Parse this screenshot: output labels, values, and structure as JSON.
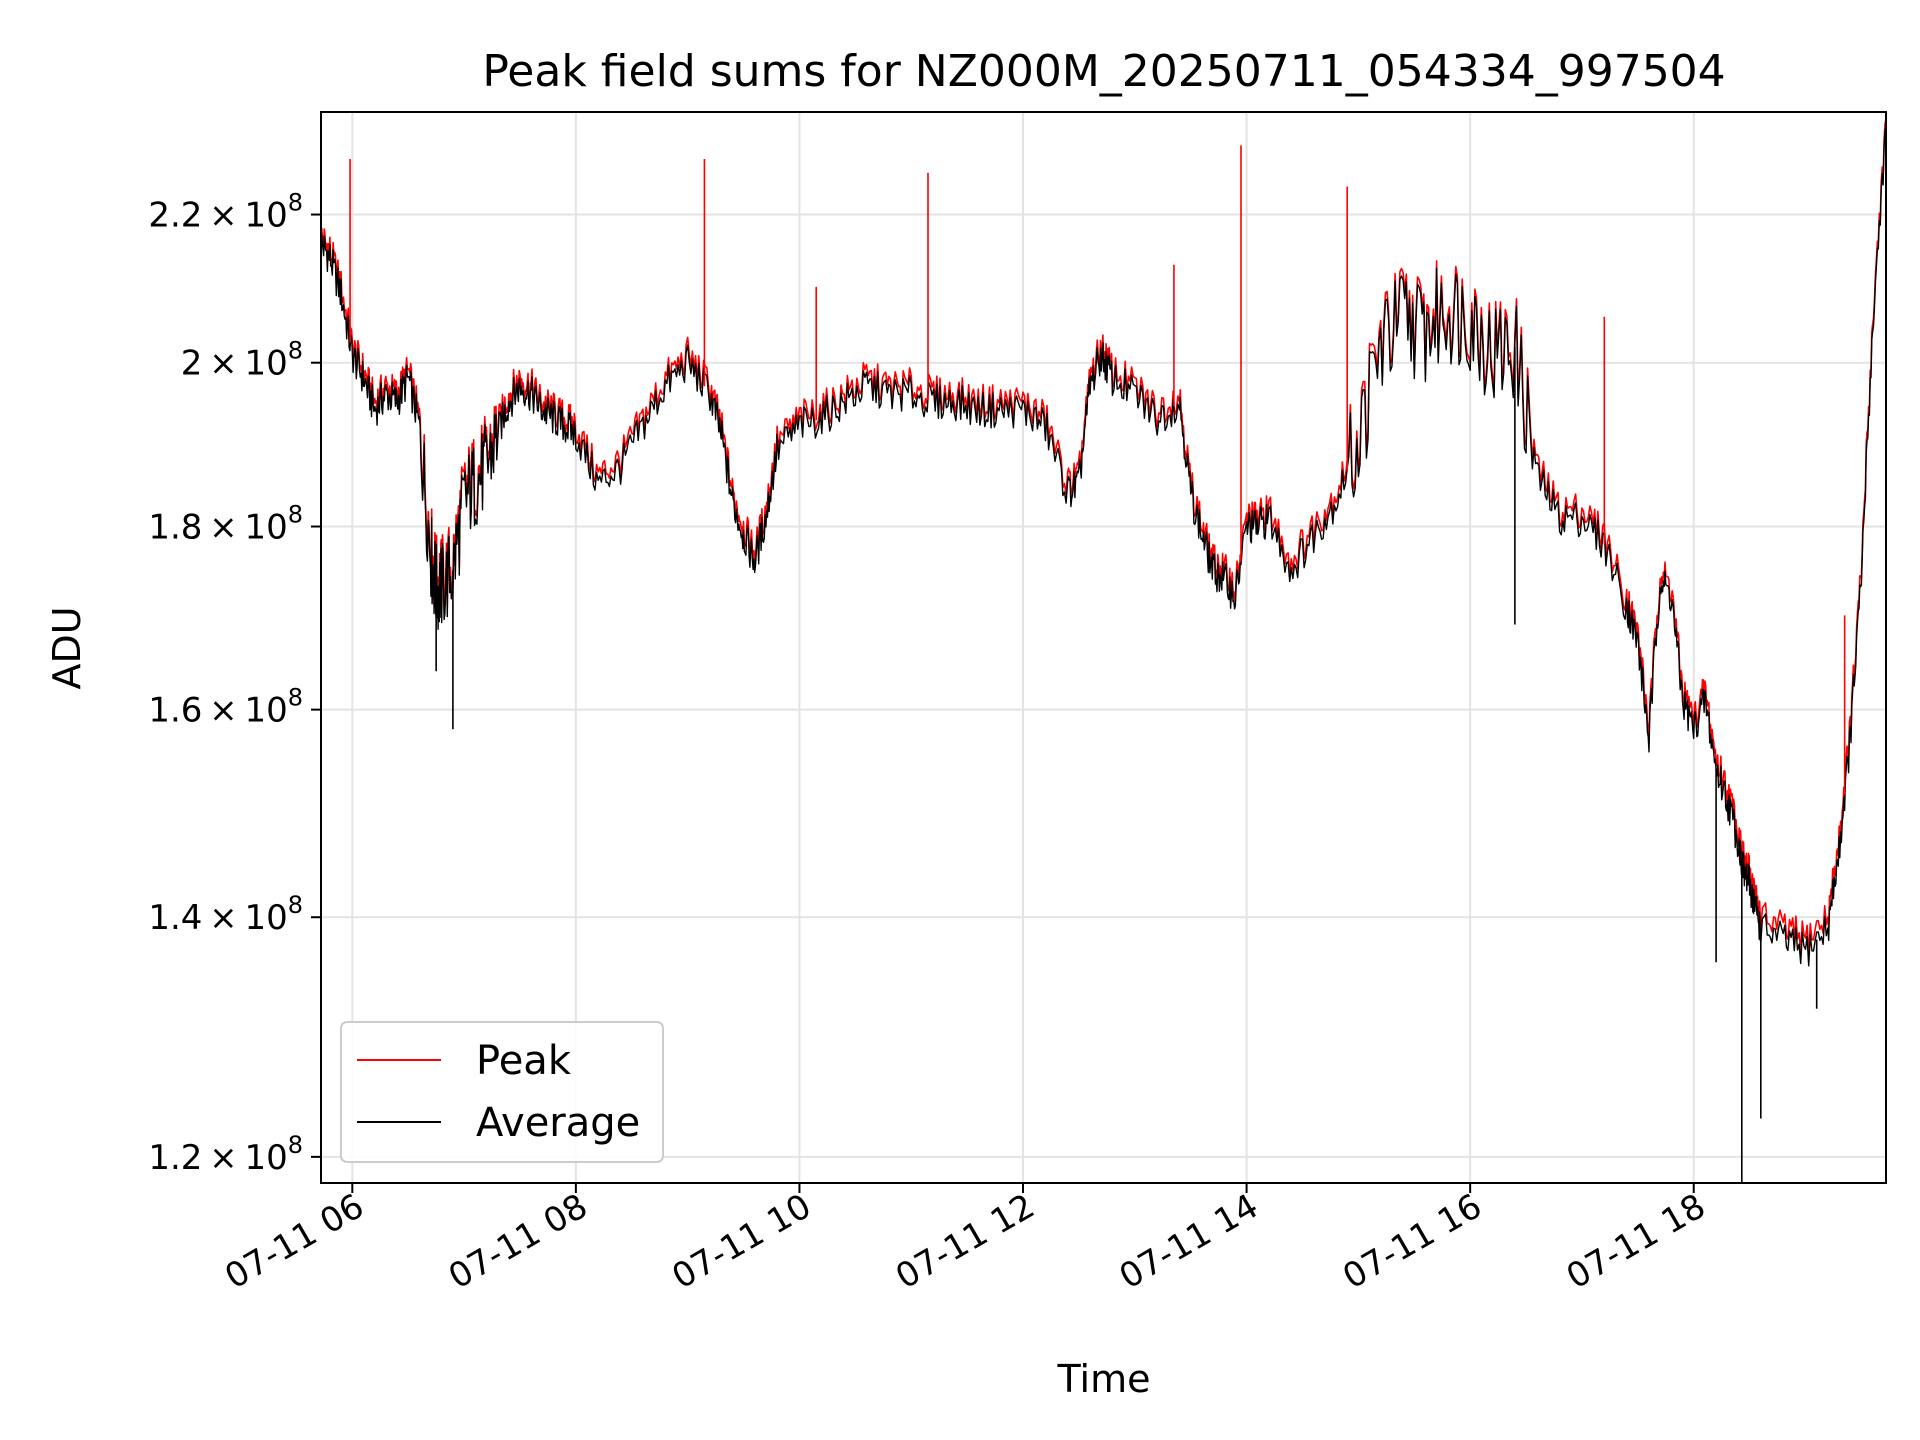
{
  "chart_data": {
    "type": "line",
    "title": "Peak field sums for NZ000M_20250711_054334_997504",
    "xlabel": "Time",
    "ylabel": "ADU",
    "yscale": "log",
    "grid": true,
    "legend_position": "lower-left",
    "x_unit": "hours (2025-07-11, local clock time)",
    "xlim": [
      5.72,
      19.72
    ],
    "ylim": [
      118000000.0,
      235000000.0
    ],
    "x_ticks": [
      {
        "value": 6,
        "label": "07-11 06"
      },
      {
        "value": 8,
        "label": "07-11 08"
      },
      {
        "value": 10,
        "label": "07-11 10"
      },
      {
        "value": 12,
        "label": "07-11 12"
      },
      {
        "value": 14,
        "label": "07-11 14"
      },
      {
        "value": 16,
        "label": "07-11 16"
      },
      {
        "value": 18,
        "label": "07-11 18"
      }
    ],
    "y_ticks": [
      {
        "value": 120000000.0,
        "mantissa": "1.2",
        "exponent": "8"
      },
      {
        "value": 140000000.0,
        "mantissa": "1.4",
        "exponent": "8"
      },
      {
        "value": 160000000.0,
        "mantissa": "1.6",
        "exponent": "8"
      },
      {
        "value": 180000000.0,
        "mantissa": "1.8",
        "exponent": "8"
      },
      {
        "value": 200000000.0,
        "mantissa": "2",
        "exponent": "8"
      },
      {
        "value": 220000000.0,
        "mantissa": "2.2",
        "exponent": "8"
      }
    ],
    "series": [
      {
        "name": "Peak",
        "color": "#ff0000",
        "x": [
          5.72,
          5.8,
          5.9,
          6.0,
          6.1,
          6.2,
          6.3,
          6.4,
          6.5,
          6.6,
          6.7,
          6.75,
          6.8,
          6.9,
          7.0,
          7.1,
          7.2,
          7.3,
          7.4,
          7.5,
          7.6,
          7.7,
          7.8,
          7.9,
          8.0,
          8.2,
          8.4,
          8.6,
          8.8,
          9.0,
          9.2,
          9.3,
          9.4,
          9.5,
          9.6,
          9.7,
          9.8,
          10.0,
          10.2,
          10.4,
          10.6,
          10.8,
          11.0,
          11.2,
          11.4,
          11.6,
          11.8,
          12.0,
          12.2,
          12.4,
          12.5,
          12.6,
          12.7,
          12.8,
          13.0,
          13.2,
          13.4,
          13.5,
          13.6,
          13.7,
          13.8,
          13.9,
          14.0,
          14.1,
          14.2,
          14.4,
          14.6,
          14.8,
          15.0,
          15.2,
          15.4,
          15.6,
          15.8,
          16.0,
          16.2,
          16.4,
          16.6,
          16.8,
          17.0,
          17.2,
          17.4,
          17.5,
          17.6,
          17.7,
          17.8,
          17.9,
          18.0,
          18.1,
          18.2,
          18.3,
          18.4,
          18.45,
          18.5,
          18.55,
          18.6,
          18.8,
          19.0,
          19.2,
          19.3,
          19.4,
          19.5,
          19.6,
          19.72
        ],
        "y": [
          217000000.0,
          215000000.0,
          210000000.0,
          202000000.0,
          199000000.0,
          195000000.0,
          197000000.0,
          196000000.0,
          199000000.0,
          193000000.0,
          178000000.0,
          174000000.0,
          174000000.0,
          176000000.0,
          184000000.0,
          186000000.0,
          188000000.0,
          192000000.0,
          196000000.0,
          198000000.0,
          197000000.0,
          195000000.0,
          194000000.0,
          193000000.0,
          192000000.0,
          186000000.0,
          188000000.0,
          193000000.0,
          198000000.0,
          201000000.0,
          197000000.0,
          192000000.0,
          184000000.0,
          180000000.0,
          177000000.0,
          182000000.0,
          190000000.0,
          193000000.0,
          194000000.0,
          196000000.0,
          198000000.0,
          197000000.0,
          197000000.0,
          196000000.0,
          196000000.0,
          195000000.0,
          195000000.0,
          195000000.0,
          193000000.0,
          185000000.0,
          186000000.0,
          198000000.0,
          202000000.0,
          199000000.0,
          197000000.0,
          194000000.0,
          196000000.0,
          185000000.0,
          180000000.0,
          176000000.0,
          175000000.0,
          173000000.0,
          181000000.0,
          181000000.0,
          182000000.0,
          176000000.0,
          180000000.0,
          184000000.0,
          191000000.0,
          203000000.0,
          207000000.0,
          205000000.0,
          208000000.0,
          207000000.0,
          202000000.0,
          203000000.0,
          187000000.0,
          182000000.0,
          182000000.0,
          179000000.0,
          172000000.0,
          168000000.0,
          158000000.0,
          175000000.0,
          173000000.0,
          162000000.0,
          159000000.0,
          162000000.0,
          155000000.0,
          152000000.0,
          148000000.0,
          145000000.0,
          144000000.0,
          142000000.0,
          140000000.0,
          139000000.0,
          138000000.0,
          140000000.0,
          147000000.0,
          158000000.0,
          175000000.0,
          205000000.0,
          234000000.0
        ]
      },
      {
        "name": "Average",
        "color": "#000000",
        "x": [
          5.72,
          5.8,
          5.9,
          6.0,
          6.1,
          6.2,
          6.3,
          6.4,
          6.5,
          6.6,
          6.7,
          6.75,
          6.8,
          6.9,
          7.0,
          7.1,
          7.2,
          7.3,
          7.4,
          7.5,
          7.6,
          7.7,
          7.8,
          7.9,
          8.0,
          8.2,
          8.4,
          8.6,
          8.8,
          9.0,
          9.2,
          9.3,
          9.4,
          9.5,
          9.6,
          9.7,
          9.8,
          10.0,
          10.2,
          10.4,
          10.6,
          10.8,
          11.0,
          11.2,
          11.4,
          11.6,
          11.8,
          12.0,
          12.2,
          12.4,
          12.5,
          12.6,
          12.7,
          12.8,
          13.0,
          13.2,
          13.4,
          13.5,
          13.6,
          13.7,
          13.8,
          13.9,
          14.0,
          14.1,
          14.2,
          14.4,
          14.6,
          14.8,
          15.0,
          15.2,
          15.4,
          15.6,
          15.8,
          16.0,
          16.2,
          16.4,
          16.6,
          16.8,
          17.0,
          17.2,
          17.4,
          17.5,
          17.6,
          17.7,
          17.8,
          17.9,
          18.0,
          18.1,
          18.2,
          18.3,
          18.4,
          18.45,
          18.5,
          18.55,
          18.6,
          18.8,
          19.0,
          19.2,
          19.3,
          19.4,
          19.5,
          19.6,
          19.72
        ],
        "y": [
          216000000.0,
          214000000.0,
          209000000.0,
          201000000.0,
          198000000.0,
          194000000.0,
          196000000.0,
          195000000.0,
          198000000.0,
          192000000.0,
          177000000.0,
          173000000.0,
          173000000.0,
          175000000.0,
          183000000.0,
          185000000.0,
          187000000.0,
          191000000.0,
          195000000.0,
          197000000.0,
          196000000.0,
          194000000.0,
          193000000.0,
          192000000.0,
          191000000.0,
          185000000.0,
          187000000.0,
          192000000.0,
          197000000.0,
          200000000.0,
          196000000.0,
          191000000.0,
          183000000.0,
          179000000.0,
          176000000.0,
          181000000.0,
          189000000.0,
          192000000.0,
          193000000.0,
          195000000.0,
          197000000.0,
          196000000.0,
          196000000.0,
          195000000.0,
          195000000.0,
          194000000.0,
          194000000.0,
          194000000.0,
          192000000.0,
          184000000.0,
          185000000.0,
          197000000.0,
          201000000.0,
          198000000.0,
          196000000.0,
          193000000.0,
          195000000.0,
          184000000.0,
          179000000.0,
          175000000.0,
          174000000.0,
          172000000.0,
          180000000.0,
          180000000.0,
          181000000.0,
          175000000.0,
          179000000.0,
          183000000.0,
          190000000.0,
          202000000.0,
          206000000.0,
          204000000.0,
          207000000.0,
          206000000.0,
          201000000.0,
          202000000.0,
          186000000.0,
          181000000.0,
          181000000.0,
          178000000.0,
          171000000.0,
          167000000.0,
          157000000.0,
          174000000.0,
          172000000.0,
          161000000.0,
          158000000.0,
          161000000.0,
          154000000.0,
          151000000.0,
          147000000.0,
          144000000.0,
          143000000.0,
          141000000.0,
          139000000.0,
          138000000.0,
          137000000.0,
          139000000.0,
          146000000.0,
          157000000.0,
          174000000.0,
          204000000.0,
          233000000.0
        ]
      }
    ],
    "spikes": {
      "peak_up": [
        {
          "x": 5.98,
          "y": 228000000.0
        },
        {
          "x": 9.15,
          "y": 228000000.0
        },
        {
          "x": 10.15,
          "y": 210000000.0
        },
        {
          "x": 11.15,
          "y": 226000000.0
        },
        {
          "x": 13.35,
          "y": 213000000.0
        },
        {
          "x": 13.95,
          "y": 230000000.0
        },
        {
          "x": 14.9,
          "y": 224000000.0
        },
        {
          "x": 17.2,
          "y": 206000000.0
        },
        {
          "x": 19.35,
          "y": 170000000.0
        }
      ],
      "average_down": [
        {
          "x": 6.9,
          "y": 158000000.0
        },
        {
          "x": 6.75,
          "y": 164000000.0
        },
        {
          "x": 16.4,
          "y": 169000000.0
        },
        {
          "x": 18.2,
          "y": 136000000.0
        },
        {
          "x": 18.43,
          "y": 118000000.0
        },
        {
          "x": 18.6,
          "y": 123000000.0
        },
        {
          "x": 19.1,
          "y": 132000000.0
        }
      ]
    }
  }
}
